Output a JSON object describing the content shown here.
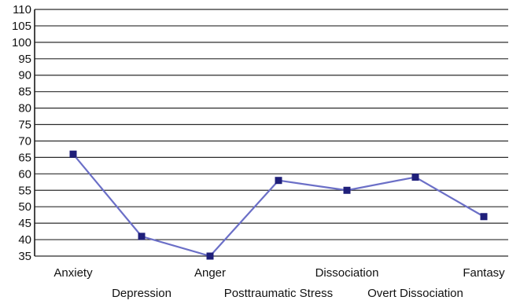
{
  "chart_data": {
    "type": "line",
    "title": "",
    "xlabel": "",
    "ylabel": "",
    "categories": [
      "Anxiety",
      "Depression",
      "Anger",
      "Posttraumatic Stress",
      "Dissociation",
      "Overt Dissociation",
      "Fantasy"
    ],
    "series": [
      {
        "values": [
          66,
          41,
          35,
          58,
          55,
          59,
          47
        ],
        "color": "#1f1f7a",
        "line_color": "#6b6fc7"
      }
    ],
    "ylim": [
      35,
      110
    ],
    "yticks": [
      35,
      40,
      45,
      50,
      55,
      60,
      65,
      70,
      75,
      80,
      85,
      90,
      95,
      100,
      105,
      110
    ],
    "grid": true,
    "legend": "none"
  }
}
